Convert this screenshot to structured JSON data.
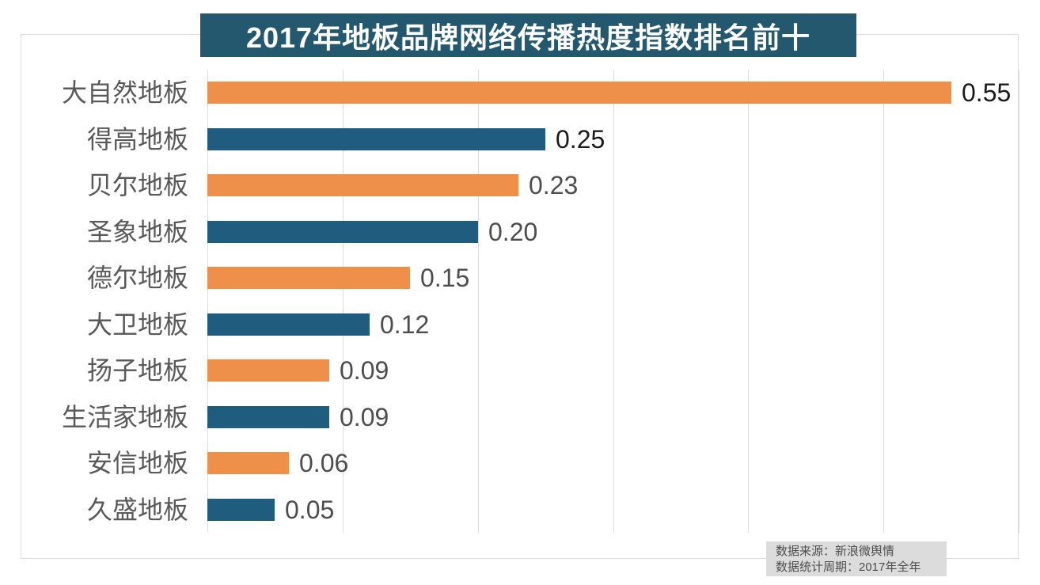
{
  "title": "2017年地板品牌网络传播热度指数排名前十",
  "colors": {
    "title_bg": "#23586F",
    "title_text": "#FFFFFF",
    "bar_orange": "#EE8F4A",
    "bar_teal": "#1F5C7D",
    "grid": "#DCDCDC",
    "frame_border": "#DCDCDC",
    "category_label": "#595959",
    "value_label": "#4D4D4D",
    "value_label_strong": "#1A1A1A",
    "source_bg": "#DCDCDC",
    "source_text": "#4D4D4D"
  },
  "chart_data": {
    "type": "bar",
    "orientation": "horizontal",
    "title": "2017年地板品牌网络传播热度指数排名前十",
    "categories": [
      "大自然地板",
      "得高地板",
      "贝尔地板",
      "圣象地板",
      "德尔地板",
      "大卫地板",
      "扬子地板",
      "生活家地板",
      "安信地板",
      "久盛地板"
    ],
    "values": [
      0.55,
      0.25,
      0.23,
      0.2,
      0.15,
      0.12,
      0.09,
      0.09,
      0.06,
      0.05
    ],
    "value_labels": [
      "0.55",
      "0.25",
      "0.23",
      "0.20",
      "0.15",
      "0.12",
      "0.09",
      "0.09",
      "0.06",
      "0.05"
    ],
    "bar_colors": [
      "#EE8F4A",
      "#1F5C7D",
      "#EE8F4A",
      "#1F5C7D",
      "#EE8F4A",
      "#1F5C7D",
      "#EE8F4A",
      "#1F5C7D",
      "#EE8F4A",
      "#1F5C7D"
    ],
    "value_label_colors": [
      "#1A1A1A",
      "#1A1A1A",
      "#4D4D4D",
      "#4D4D4D",
      "#4D4D4D",
      "#4D4D4D",
      "#4D4D4D",
      "#4D4D4D",
      "#4D4D4D",
      "#4D4D4D"
    ],
    "xlabel": "",
    "ylabel": "",
    "xlim": [
      0,
      0.6
    ],
    "grid_step": 0.1,
    "gridlines": "vertical",
    "legend": "none",
    "data_labels_position": "end"
  },
  "source": {
    "line1": "数据来源：新浪微舆情",
    "line2": "数据统计周期：2017年全年"
  }
}
